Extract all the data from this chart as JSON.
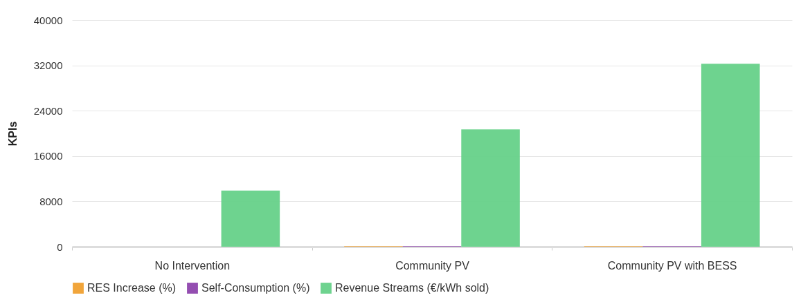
{
  "chart_data": {
    "type": "bar",
    "ylabel": "KPIs",
    "categories": [
      "No Intervention",
      "Community PV",
      "Community PV with BESS"
    ],
    "series": [
      {
        "name": "RES Increase (%)",
        "color": "#f0a030",
        "values": [
          0,
          100,
          100
        ]
      },
      {
        "name": "Self-Consumption (%)",
        "color": "#8e44ad",
        "values": [
          0,
          100,
          100
        ]
      },
      {
        "name": "Revenue Streams (€/kWh sold)",
        "color": "#66d189",
        "values": [
          9900,
          20700,
          32300
        ]
      }
    ],
    "ylim": [
      0,
      40000
    ],
    "yticks": [
      0,
      8000,
      16000,
      24000,
      32000,
      40000
    ],
    "grid": "y",
    "legend": "bottom"
  }
}
